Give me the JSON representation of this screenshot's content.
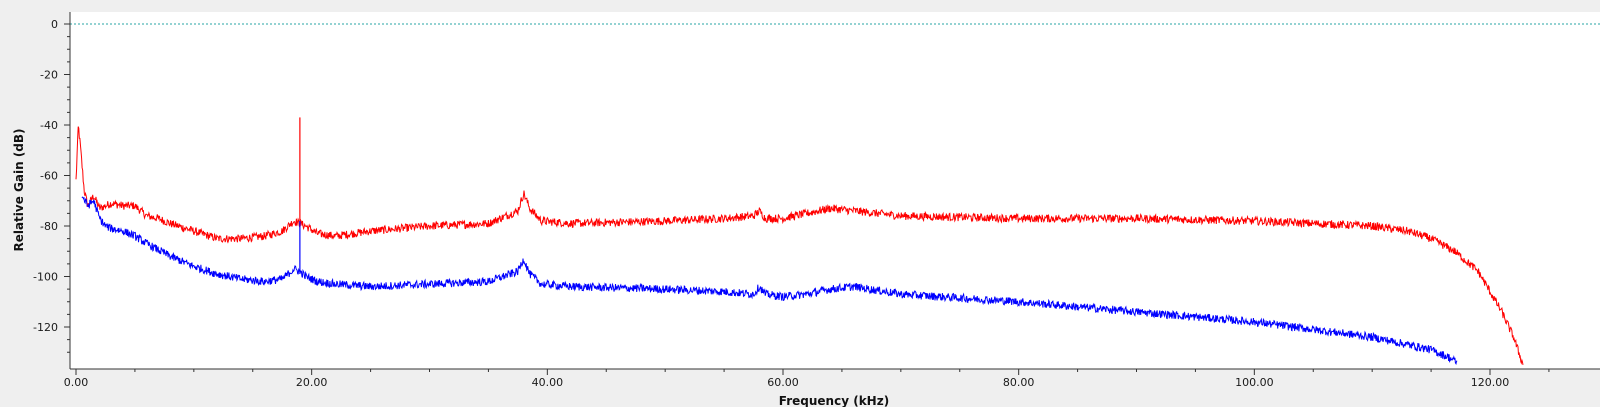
{
  "chart_data": {
    "type": "line",
    "title": "",
    "xlabel": "Frequency (kHz)",
    "ylabel": "Relative Gain (dB)",
    "xlim": [
      0,
      125
    ],
    "ylim": [
      -135,
      0
    ],
    "x_ticks": [
      0,
      20,
      40,
      60,
      80,
      100,
      120
    ],
    "x_tick_labels": [
      "0.00",
      "20.00",
      "40.00",
      "60.00",
      "80.00",
      "100.00",
      "120.00"
    ],
    "y_ticks": [
      0,
      -20,
      -40,
      -60,
      -80,
      -100,
      -120
    ],
    "y_tick_labels": [
      "0",
      "-20",
      "-40",
      "-60",
      "-80",
      "-100",
      "-120"
    ],
    "grid": false,
    "legend": "none",
    "reference_line": {
      "y": 0,
      "color": "#2aa5a5",
      "style": "dotted"
    },
    "series": [
      {
        "color": "#ff0000",
        "x": [
          0,
          0.2,
          0.4,
          0.7,
          1.0,
          1.5,
          2,
          3,
          4,
          5,
          6,
          7,
          8,
          10,
          12,
          14,
          16,
          17.5,
          18.5,
          19,
          19.5,
          20.5,
          22,
          25,
          30,
          35,
          37.5,
          38,
          38.5,
          39.5,
          42,
          50,
          55,
          57.5,
          58,
          58.5,
          60,
          62,
          64,
          66,
          70,
          80,
          90,
          100,
          105,
          110,
          113,
          115,
          117,
          119,
          120,
          121,
          122,
          122.8
        ],
        "y": [
          -62,
          -40,
          -50,
          -66,
          -72,
          -68,
          -73,
          -71,
          -72,
          -72,
          -76,
          -77,
          -79,
          -82,
          -85,
          -85,
          -84,
          -82,
          -78,
          -79,
          -80,
          -83,
          -84,
          -82,
          -80,
          -79,
          -74,
          -67,
          -73,
          -78,
          -79,
          -78,
          -77,
          -76,
          -74,
          -77,
          -77,
          -75,
          -73,
          -74,
          -76,
          -77,
          -77,
          -78,
          -79,
          -80,
          -82,
          -85,
          -90,
          -98,
          -106,
          -114,
          -124,
          -135
        ]
      },
      {
        "color": "#0000ff",
        "x": [
          0.5,
          1,
          1.5,
          2,
          2.5,
          3,
          4,
          5,
          6,
          8,
          10,
          12,
          14,
          16,
          17.5,
          18.5,
          19,
          19.5,
          20.5,
          22,
          25,
          30,
          35,
          37.5,
          38,
          38.5,
          39.5,
          42,
          50,
          55,
          57.5,
          58,
          58.5,
          60,
          62,
          64,
          66,
          70,
          80,
          90,
          100,
          105,
          110,
          113,
          115,
          116.5,
          117.2
        ],
        "y": [
          -68,
          -72,
          -70,
          -77,
          -80,
          -81,
          -82,
          -84,
          -87,
          -92,
          -96,
          -99,
          -101,
          -102,
          -101,
          -97,
          -98,
          -100,
          -102,
          -103,
          -104,
          -103,
          -102,
          -98,
          -93,
          -99,
          -103,
          -104,
          -105,
          -106,
          -107,
          -104,
          -107,
          -108,
          -107,
          -105,
          -104,
          -107,
          -110,
          -114,
          -118,
          -121,
          -124,
          -127,
          -129,
          -132,
          -134
        ]
      }
    ]
  }
}
